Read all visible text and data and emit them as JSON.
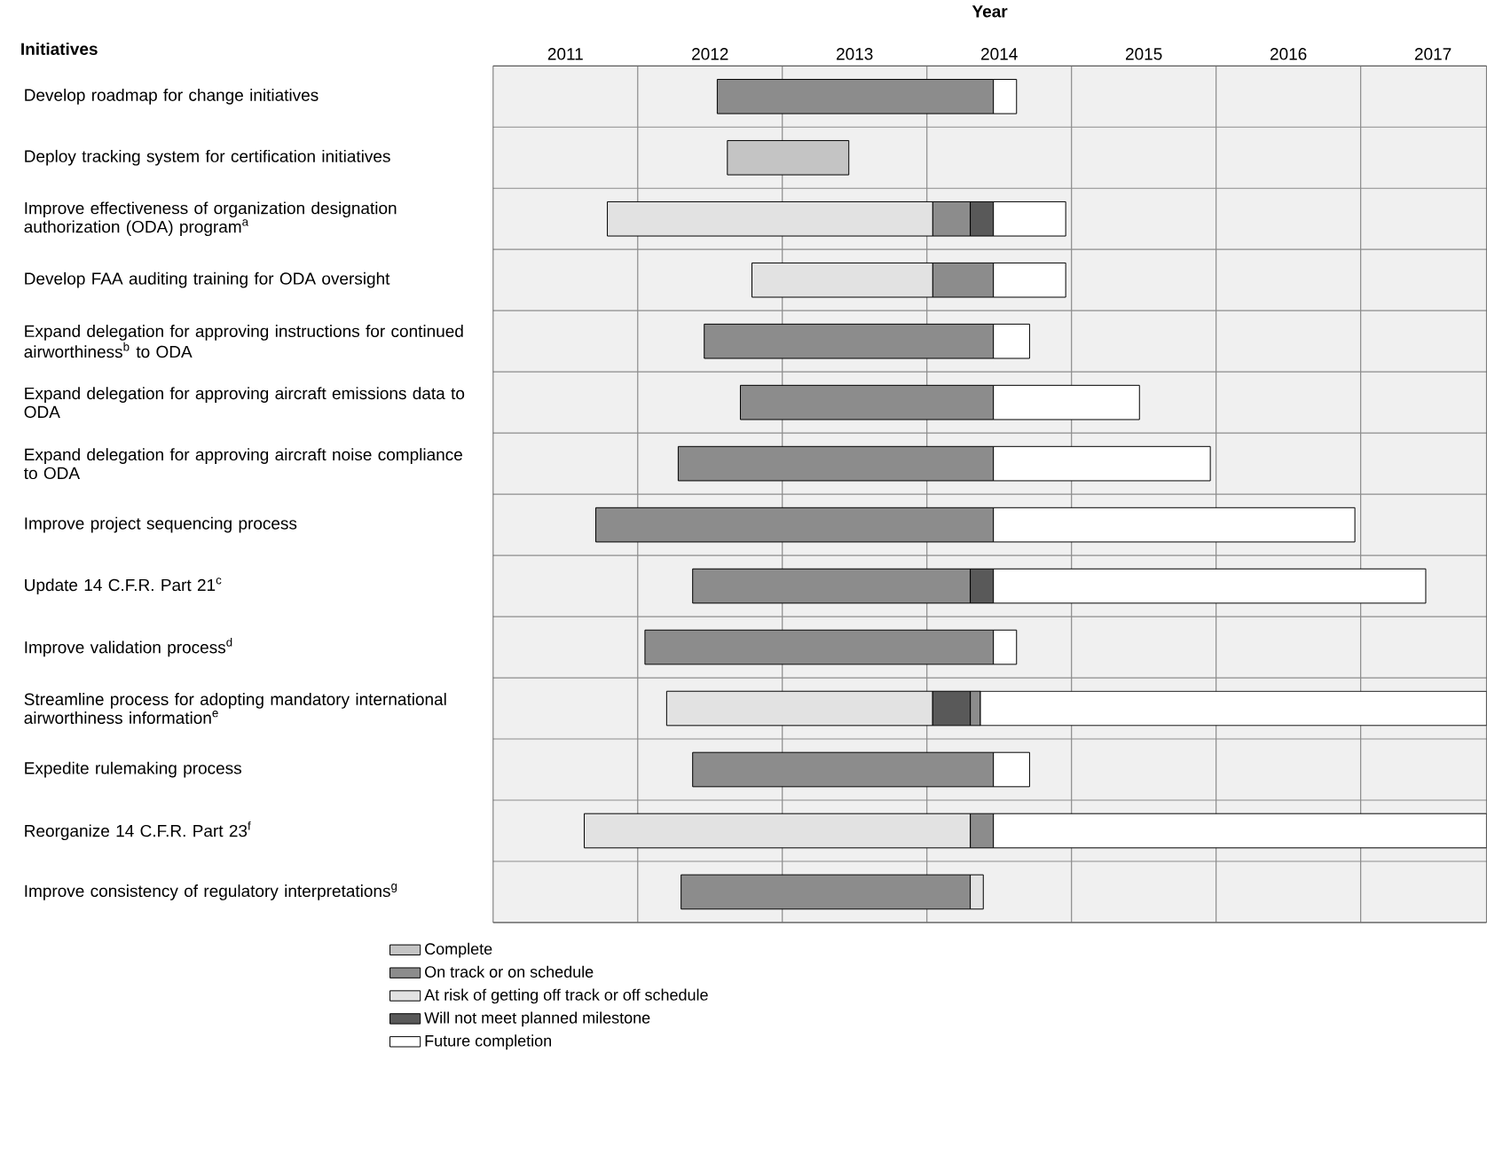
{
  "chart_data": {
    "type": "bar",
    "orientation": "horizontal",
    "title": "Year",
    "ylabel": "Initiatives",
    "categories": [
      "Develop roadmap for change initiatives",
      "Deploy tracking system for certification initiatives",
      "Improve effectiveness of organization designation authorization (ODA) program$^{a}$",
      "Develop FAA auditing training for ODA oversight",
      "Expand delegation for approving instructions for continued airworthiness$^{b}$ to ODA",
      "Expand delegation for approving aircraft emissions data to ODA",
      "Expand delegation for approving aircraft noise compliance to ODA",
      "Improve project sequencing process",
      "Update 14 C.F.R. Part 21$^{c}$",
      "Improve validation process$^{d}$",
      "Streamline process for adopting mandatory international airworthiness information$^{e}$",
      "Expedite rulemaking process",
      "Reorganize 14 C.F.R. Part 23$^{f}$",
      "Improve consistency of regulatory interpretations$^{g}$"
    ],
    "series": [
      {
        "name": "Complete",
        "color": "#c4c4c4",
        "base": [
          null,
          2012.62,
          null,
          null,
          null,
          null,
          null,
          null,
          null,
          null,
          null,
          null,
          null,
          null
        ],
        "values": [
          null,
          0.84,
          null,
          null,
          null,
          null,
          null,
          null,
          null,
          null,
          null,
          null,
          null,
          null
        ]
      },
      {
        "name": "On track or on schedule",
        "color": "#8c8c8c",
        "base": [
          2012.55,
          null,
          2014.04,
          2014.04,
          2012.46,
          2012.71,
          2012.28,
          2011.71,
          2012.38,
          2012.05,
          2014.3,
          2012.38,
          2014.3,
          2012.3
        ],
        "values": [
          1.91,
          null,
          0.26,
          0.42,
          2.0,
          1.75,
          2.18,
          2.75,
          1.92,
          2.41,
          0.07,
          2.08,
          0.16,
          2.0
        ]
      },
      {
        "name": "At risk of getting off track or off schedule",
        "color": "#e2e2e2",
        "base": [
          null,
          null,
          2011.79,
          2012.79,
          null,
          null,
          null,
          null,
          null,
          null,
          2012.2,
          null,
          2011.63,
          2014.3
        ],
        "values": [
          null,
          null,
          2.25,
          1.25,
          null,
          null,
          null,
          null,
          null,
          null,
          1.84,
          null,
          2.67,
          0.09
        ]
      },
      {
        "name": "Will not meet planned milestone",
        "color": "#595959",
        "base": [
          null,
          null,
          2014.3,
          null,
          null,
          null,
          null,
          null,
          2014.3,
          null,
          2014.04,
          null,
          null,
          null
        ],
        "values": [
          null,
          null,
          0.16,
          null,
          null,
          null,
          null,
          null,
          0.16,
          null,
          0.26,
          null,
          null,
          null
        ]
      },
      {
        "name": "Future completion",
        "color": "#ffffff",
        "base": [
          2014.46,
          null,
          2014.46,
          2014.46,
          2014.46,
          2014.46,
          2014.46,
          2014.46,
          2014.46,
          2014.46,
          2014.37,
          2014.46,
          2014.46,
          null
        ],
        "values": [
          0.16,
          null,
          0.5,
          0.5,
          0.25,
          1.01,
          1.5,
          2.5,
          2.99,
          0.16,
          3.5,
          0.25,
          3.41,
          null
        ]
      }
    ],
    "xlim": [
      2011,
      2017.87
    ],
    "xticks": [
      {
        "value": 2011.5,
        "label": "2011"
      },
      {
        "value": 2012.5,
        "label": "2012"
      },
      {
        "value": 2013.5,
        "label": "2013"
      },
      {
        "value": 2014.5,
        "label": "2014"
      },
      {
        "value": 2015.5,
        "label": "2015"
      },
      {
        "value": 2016.5,
        "label": "2016"
      },
      {
        "value": 2017.5,
        "label": "2017"
      },
      {
        "value": 2012,
        "label": null
      },
      {
        "value": 2013,
        "label": null
      },
      {
        "value": 2014,
        "label": null
      },
      {
        "value": 2015,
        "label": null
      },
      {
        "value": 2016,
        "label": null
      },
      {
        "value": 2017,
        "label": null
      }
    ],
    "grid": true,
    "legend": "bottom"
  }
}
